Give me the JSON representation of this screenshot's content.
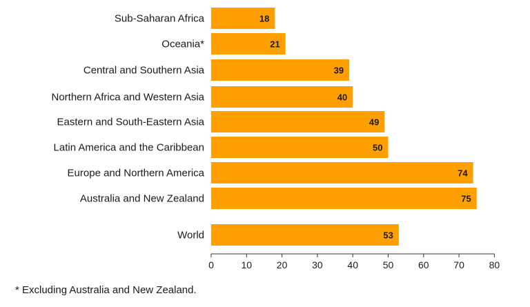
{
  "chart_data": {
    "type": "bar",
    "orientation": "horizontal",
    "categories": [
      "Sub-Saharan Africa",
      "Oceania*",
      "Central and Southern Asia",
      "Northern Africa and Western Asia",
      "Eastern and South-Eastern Asia",
      "Latin America and the Caribbean",
      "Europe and Northern America",
      "Australia and New Zealand",
      "World"
    ],
    "values": [
      18,
      21,
      39,
      40,
      49,
      50,
      74,
      75,
      53
    ],
    "xlim": [
      0,
      80
    ],
    "xticks": [
      0,
      10,
      20,
      30,
      40,
      50,
      60,
      70,
      80
    ],
    "data_labels": true,
    "grid": false,
    "bar_color": "#FFA000",
    "footnote": "* Excluding Australia and New Zealand."
  }
}
